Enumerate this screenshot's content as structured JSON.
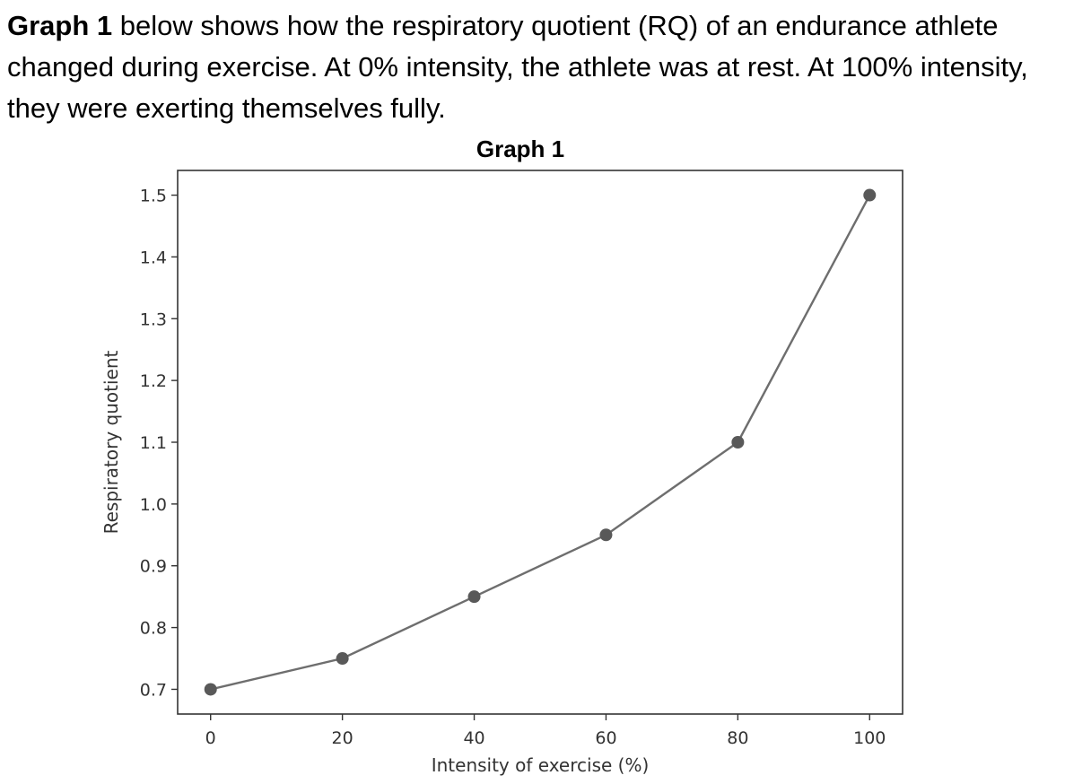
{
  "intro": {
    "lead": "Graph 1",
    "text": " below shows how the respiratory quotient (RQ) of an endurance athlete changed during exercise. At 0% intensity, the athlete was at rest. At 100% intensity, they were exerting themselves fully."
  },
  "colors": {
    "line": "#6e6e6e",
    "marker": "#595959",
    "axes": "#333333",
    "text": "#000000"
  },
  "chart_data": {
    "type": "line",
    "title": "Graph 1",
    "xlabel": "Intensity of exercise (%)",
    "ylabel": "Respiratory quotient",
    "x": [
      0,
      20,
      40,
      60,
      80,
      100
    ],
    "series": [
      {
        "values": [
          0.7,
          0.75,
          0.85,
          0.95,
          1.1,
          1.5
        ]
      }
    ],
    "xlim": [
      -5,
      105
    ],
    "ylim": [
      0.66,
      1.54
    ],
    "xticks": [
      0,
      20,
      40,
      60,
      80,
      100
    ],
    "xtick_labels": [
      "0",
      "20",
      "40",
      "60",
      "80",
      "100"
    ],
    "yticks": [
      0.7,
      0.8,
      0.9,
      1.0,
      1.1,
      1.2,
      1.3,
      1.4,
      1.5
    ],
    "ytick_labels": [
      "0.7",
      "0.8",
      "0.9",
      "1.0",
      "1.1",
      "1.2",
      "1.3",
      "1.4",
      "1.5"
    ],
    "grid": false,
    "markers": true
  }
}
